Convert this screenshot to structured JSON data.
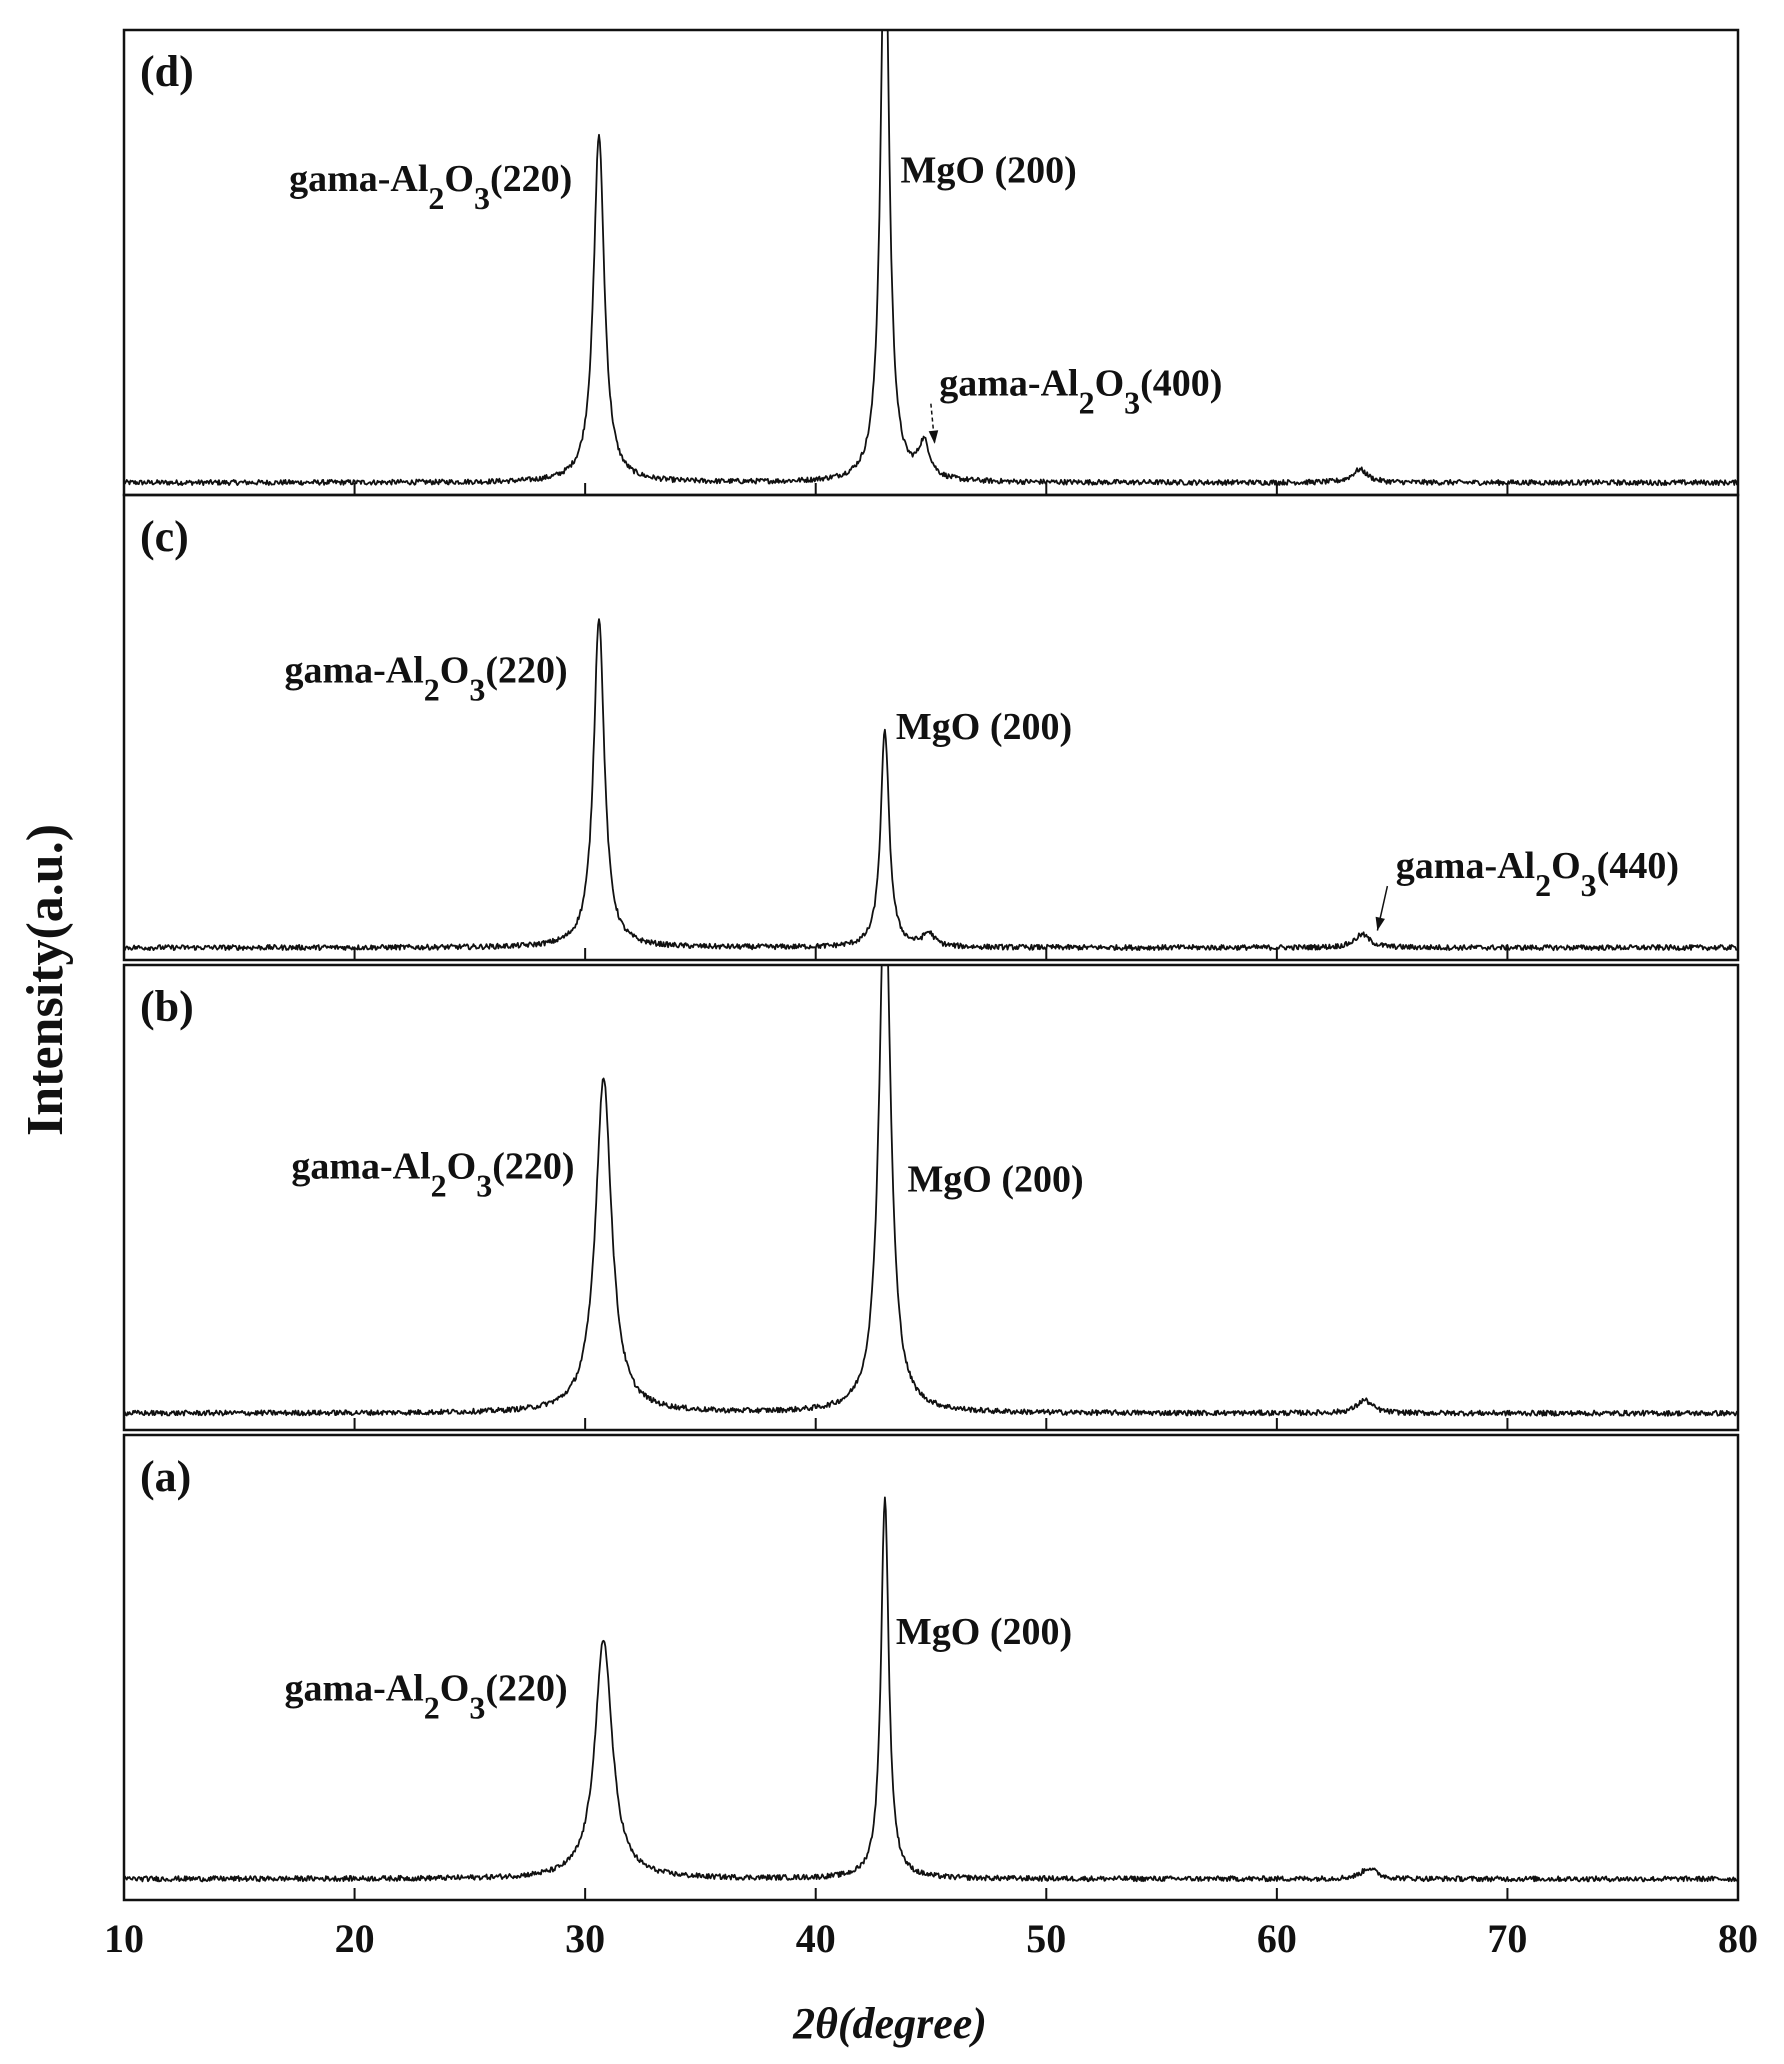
{
  "chart_data": {
    "type": "line",
    "xlabel": "2θ(degree)",
    "ylabel": "Intensity(a.u.)",
    "xlim": [
      10,
      80
    ],
    "x_ticks": [
      10,
      20,
      30,
      40,
      50,
      60,
      70,
      80
    ],
    "grid": false,
    "panels": [
      {
        "id": "d",
        "label": "(d)",
        "baseline": 0.01,
        "peaks": [
          {
            "pos": 30.6,
            "height": 0.8,
            "width": 0.28
          },
          {
            "pos": 43.0,
            "height": 1.35,
            "width": 0.22
          },
          {
            "pos": 44.7,
            "height": 0.08,
            "width": 0.3
          },
          {
            "pos": 63.6,
            "height": 0.03,
            "width": 0.4
          }
        ],
        "annotations": [
          {
            "id": "d-a1",
            "text": [
              "gama-Al",
              "2",
              "O",
              "3",
              "(220)"
            ],
            "x": 23.3,
            "y": 0.68,
            "anchor": "middle",
            "peak": null
          },
          {
            "id": "d-a2",
            "text": [
              "MgO (200)"
            ],
            "x": 47.5,
            "y": 0.7,
            "anchor": "middle",
            "peak": null
          },
          {
            "id": "d-a3",
            "text": [
              "gama-Al",
              "2",
              "O",
              "3",
              "(400)"
            ],
            "x": 51.5,
            "y": 0.21,
            "anchor": "middle",
            "peak": [
              44.9,
              0.09
            ]
          }
        ]
      },
      {
        "id": "c",
        "label": "(c)",
        "baseline": 0.01,
        "peaks": [
          {
            "pos": 30.6,
            "height": 0.76,
            "width": 0.28
          },
          {
            "pos": 43.0,
            "height": 0.5,
            "width": 0.22
          },
          {
            "pos": 44.9,
            "height": 0.03,
            "width": 0.3
          },
          {
            "pos": 63.7,
            "height": 0.03,
            "width": 0.4
          }
        ],
        "annotations": [
          {
            "id": "c-a1",
            "text": [
              "gama-Al",
              "2",
              "O",
              "3",
              "(220)"
            ],
            "x": 23.1,
            "y": 0.62,
            "anchor": "middle",
            "peak": null
          },
          {
            "id": "c-a2",
            "text": [
              "MgO (200)"
            ],
            "x": 47.3,
            "y": 0.49,
            "anchor": "middle",
            "peak": null
          },
          {
            "id": "c-a3",
            "text": [
              "gama-Al",
              "2",
              "O",
              "3",
              "(440)"
            ],
            "x": 71.3,
            "y": 0.17,
            "anchor": "middle",
            "peak": [
              64.1,
              0.04
            ]
          }
        ]
      },
      {
        "id": "b",
        "label": "(b)",
        "baseline": 0.02,
        "peaks": [
          {
            "pos": 30.8,
            "height": 0.77,
            "width": 0.42
          },
          {
            "pos": 43.0,
            "height": 1.25,
            "width": 0.3
          },
          {
            "pos": 63.8,
            "height": 0.03,
            "width": 0.4
          }
        ],
        "annotations": [
          {
            "id": "b-a1",
            "text": [
              "gama-Al",
              "2",
              "O",
              "3",
              "(220)"
            ],
            "x": 23.4,
            "y": 0.56,
            "anchor": "middle",
            "peak": null
          },
          {
            "id": "b-a2",
            "text": [
              "MgO (200)"
            ],
            "x": 47.8,
            "y": 0.53,
            "anchor": "middle",
            "peak": null
          }
        ]
      },
      {
        "id": "a",
        "label": "(a)",
        "baseline": 0.03,
        "peaks": [
          {
            "pos": 30.8,
            "height": 0.55,
            "width": 0.45
          },
          {
            "pos": 43.0,
            "height": 0.88,
            "width": 0.2
          },
          {
            "pos": 64.0,
            "height": 0.025,
            "width": 0.4
          }
        ],
        "annotations": [
          {
            "id": "a-a1",
            "text": [
              "gama-Al",
              "2",
              "O",
              "3",
              "(220)"
            ],
            "x": 23.1,
            "y": 0.44,
            "anchor": "middle",
            "peak": null
          },
          {
            "id": "a-a2",
            "text": [
              "MgO (200)"
            ],
            "x": 47.3,
            "y": 0.57,
            "anchor": "middle",
            "peak": null
          }
        ]
      }
    ]
  }
}
